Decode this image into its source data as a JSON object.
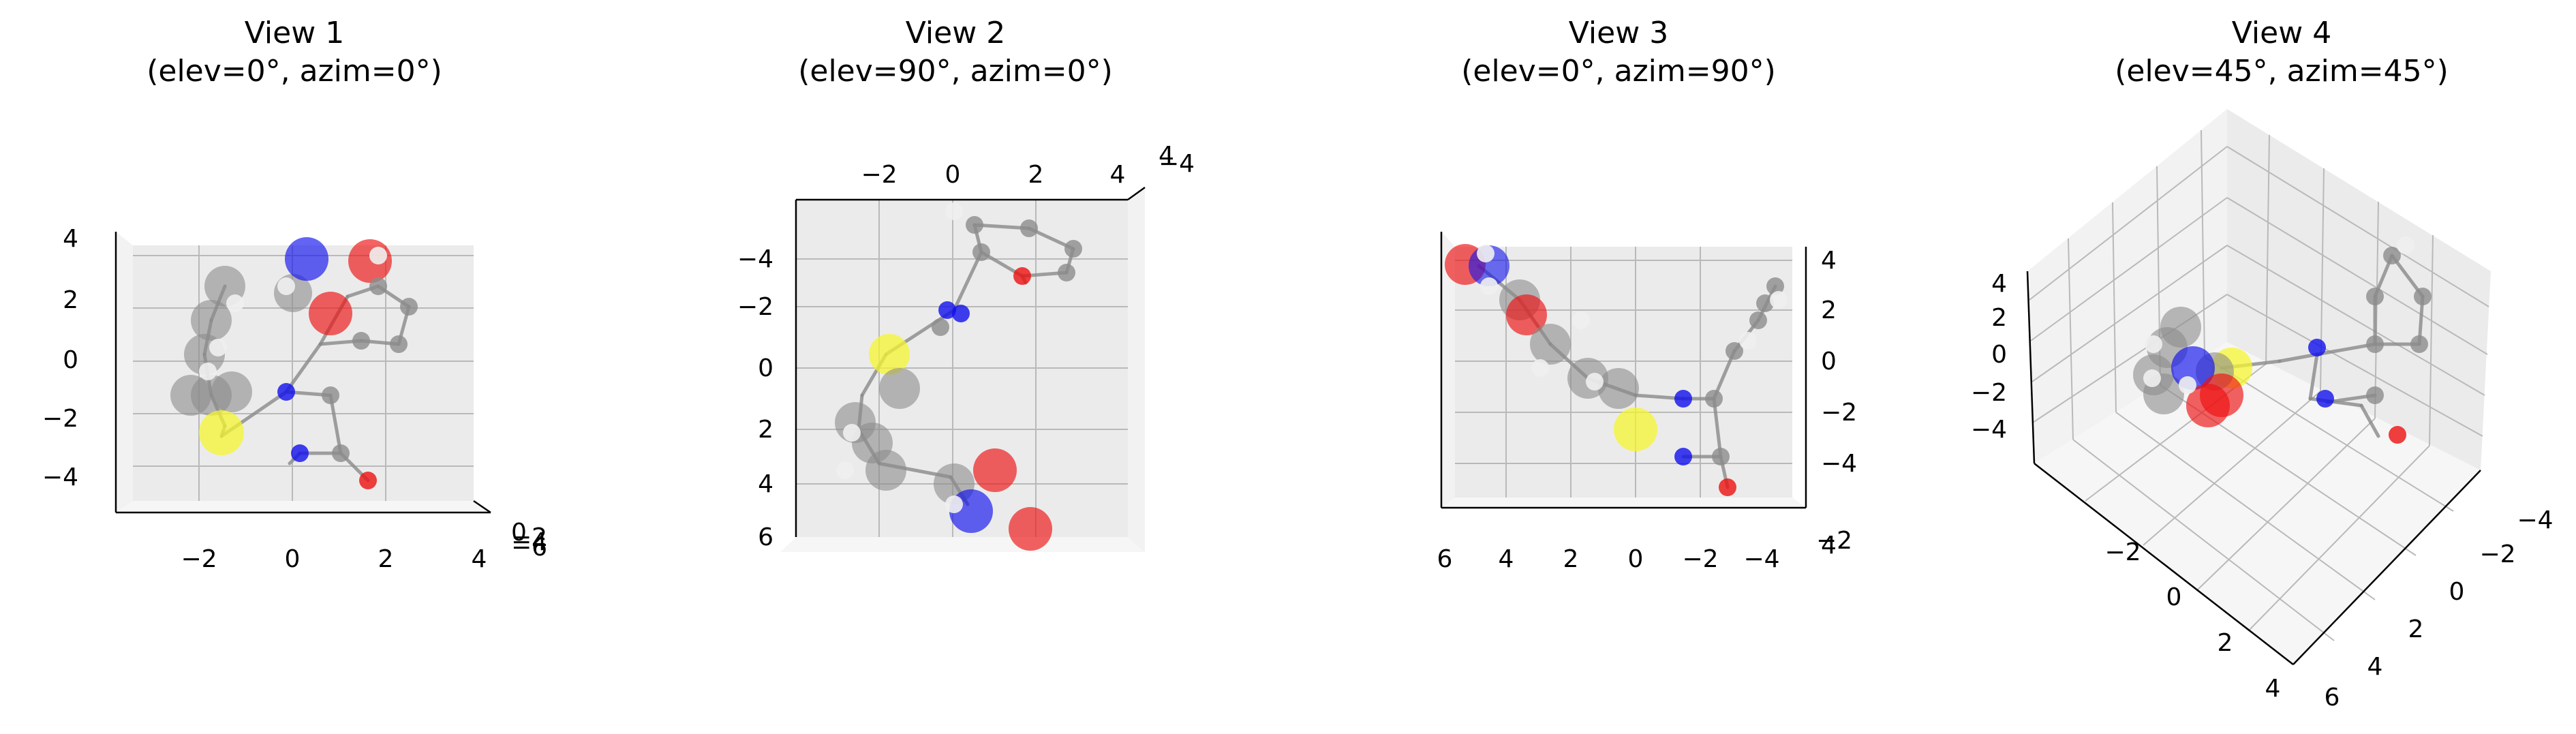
{
  "chart_data": [
    {
      "type": "scatter3d",
      "title_line1": "View 1",
      "title_line2": "(elev=0°, azim=0°)",
      "ticks": {
        "x": [
          "−2",
          "0",
          "2",
          "4"
        ],
        "y": [
          "4",
          "2",
          "0",
          "−2",
          "−4"
        ],
        "z": [
          "−6",
          "−4",
          "−2",
          "0"
        ]
      }
    },
    {
      "type": "scatter3d",
      "title_line1": "View 2",
      "title_line2": "(elev=90°, azim=0°)",
      "ticks": {
        "x": [
          "−2",
          "0",
          "2",
          "4"
        ],
        "y": [
          "−4",
          "−2",
          "0",
          "2",
          "4",
          "6"
        ],
        "z": [
          "−4",
          "4"
        ]
      }
    },
    {
      "type": "scatter3d",
      "title_line1": "View 3",
      "title_line2": "(elev=0°, azim=90°)",
      "ticks": {
        "x": [
          "6",
          "4",
          "2",
          "0",
          "−2",
          "−4"
        ],
        "y": [
          "4",
          "2",
          "0",
          "−2",
          "−4"
        ],
        "z": [
          "−2",
          "4"
        ]
      }
    },
    {
      "type": "scatter3d",
      "title_line1": "View 4",
      "title_line2": "(elev=45°, azim=45°)",
      "ticks": {
        "x": [
          "−2",
          "0",
          "2",
          "4"
        ],
        "y": [
          "6",
          "4",
          "2",
          "0",
          "−2",
          "−4"
        ],
        "z": [
          "4",
          "2",
          "0",
          "−2",
          "−4"
        ]
      }
    }
  ],
  "atom_colors": {
    "C": "#8c8c8c",
    "H": "#f0f0f0",
    "N": "#1010ee",
    "O": "#ee1010",
    "S": "#f5f530"
  }
}
